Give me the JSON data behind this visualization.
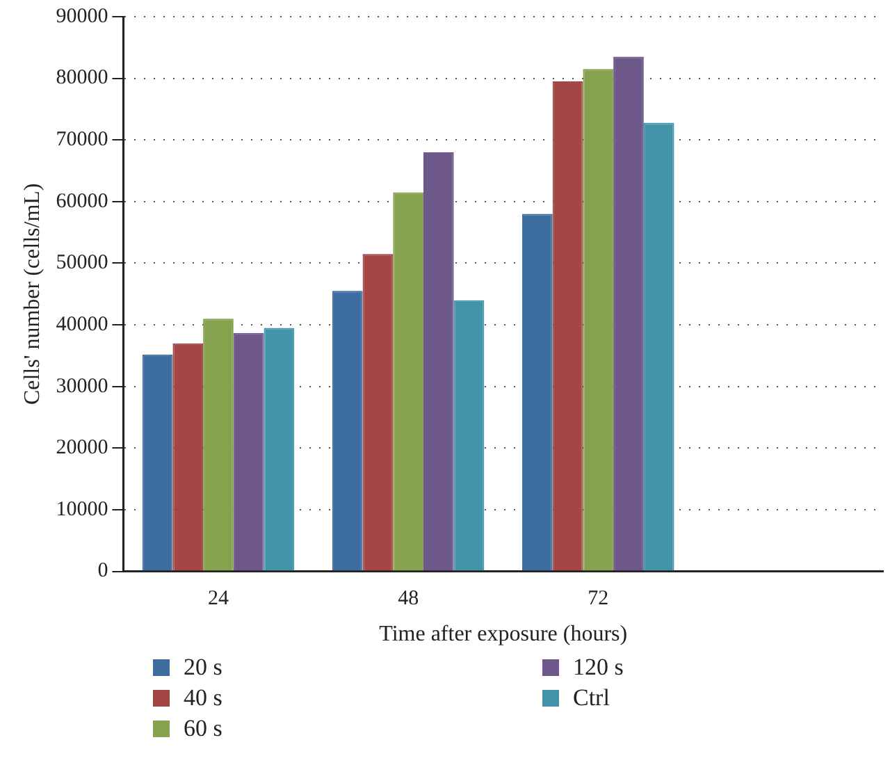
{
  "chart_data": {
    "type": "bar",
    "xlabel": "Time after exposure (hours)",
    "ylabel": "Cells' number (cells/mL)",
    "categories": [
      "24",
      "48",
      "72",
      null
    ],
    "series": [
      {
        "name": "20 s",
        "color": "#3d6d9e",
        "values": [
          35200,
          45500,
          58000,
          null
        ]
      },
      {
        "name": "40 s",
        "color": "#a44643",
        "values": [
          37000,
          51500,
          79500,
          null
        ]
      },
      {
        "name": "60 s",
        "color": "#87a24f",
        "values": [
          41000,
          61500,
          81500,
          null
        ]
      },
      {
        "name": "120 s",
        "color": "#6d578b",
        "values": [
          38700,
          68000,
          83500,
          null
        ]
      },
      {
        "name": "Ctrl",
        "color": "#4394a8",
        "values": [
          39500,
          44000,
          72800,
          null
        ]
      }
    ],
    "ylim": [
      0,
      90000
    ],
    "yticks": [
      0,
      10000,
      20000,
      30000,
      40000,
      50000,
      60000,
      70000,
      80000,
      90000
    ],
    "grid": "y",
    "legend": "bottom"
  }
}
